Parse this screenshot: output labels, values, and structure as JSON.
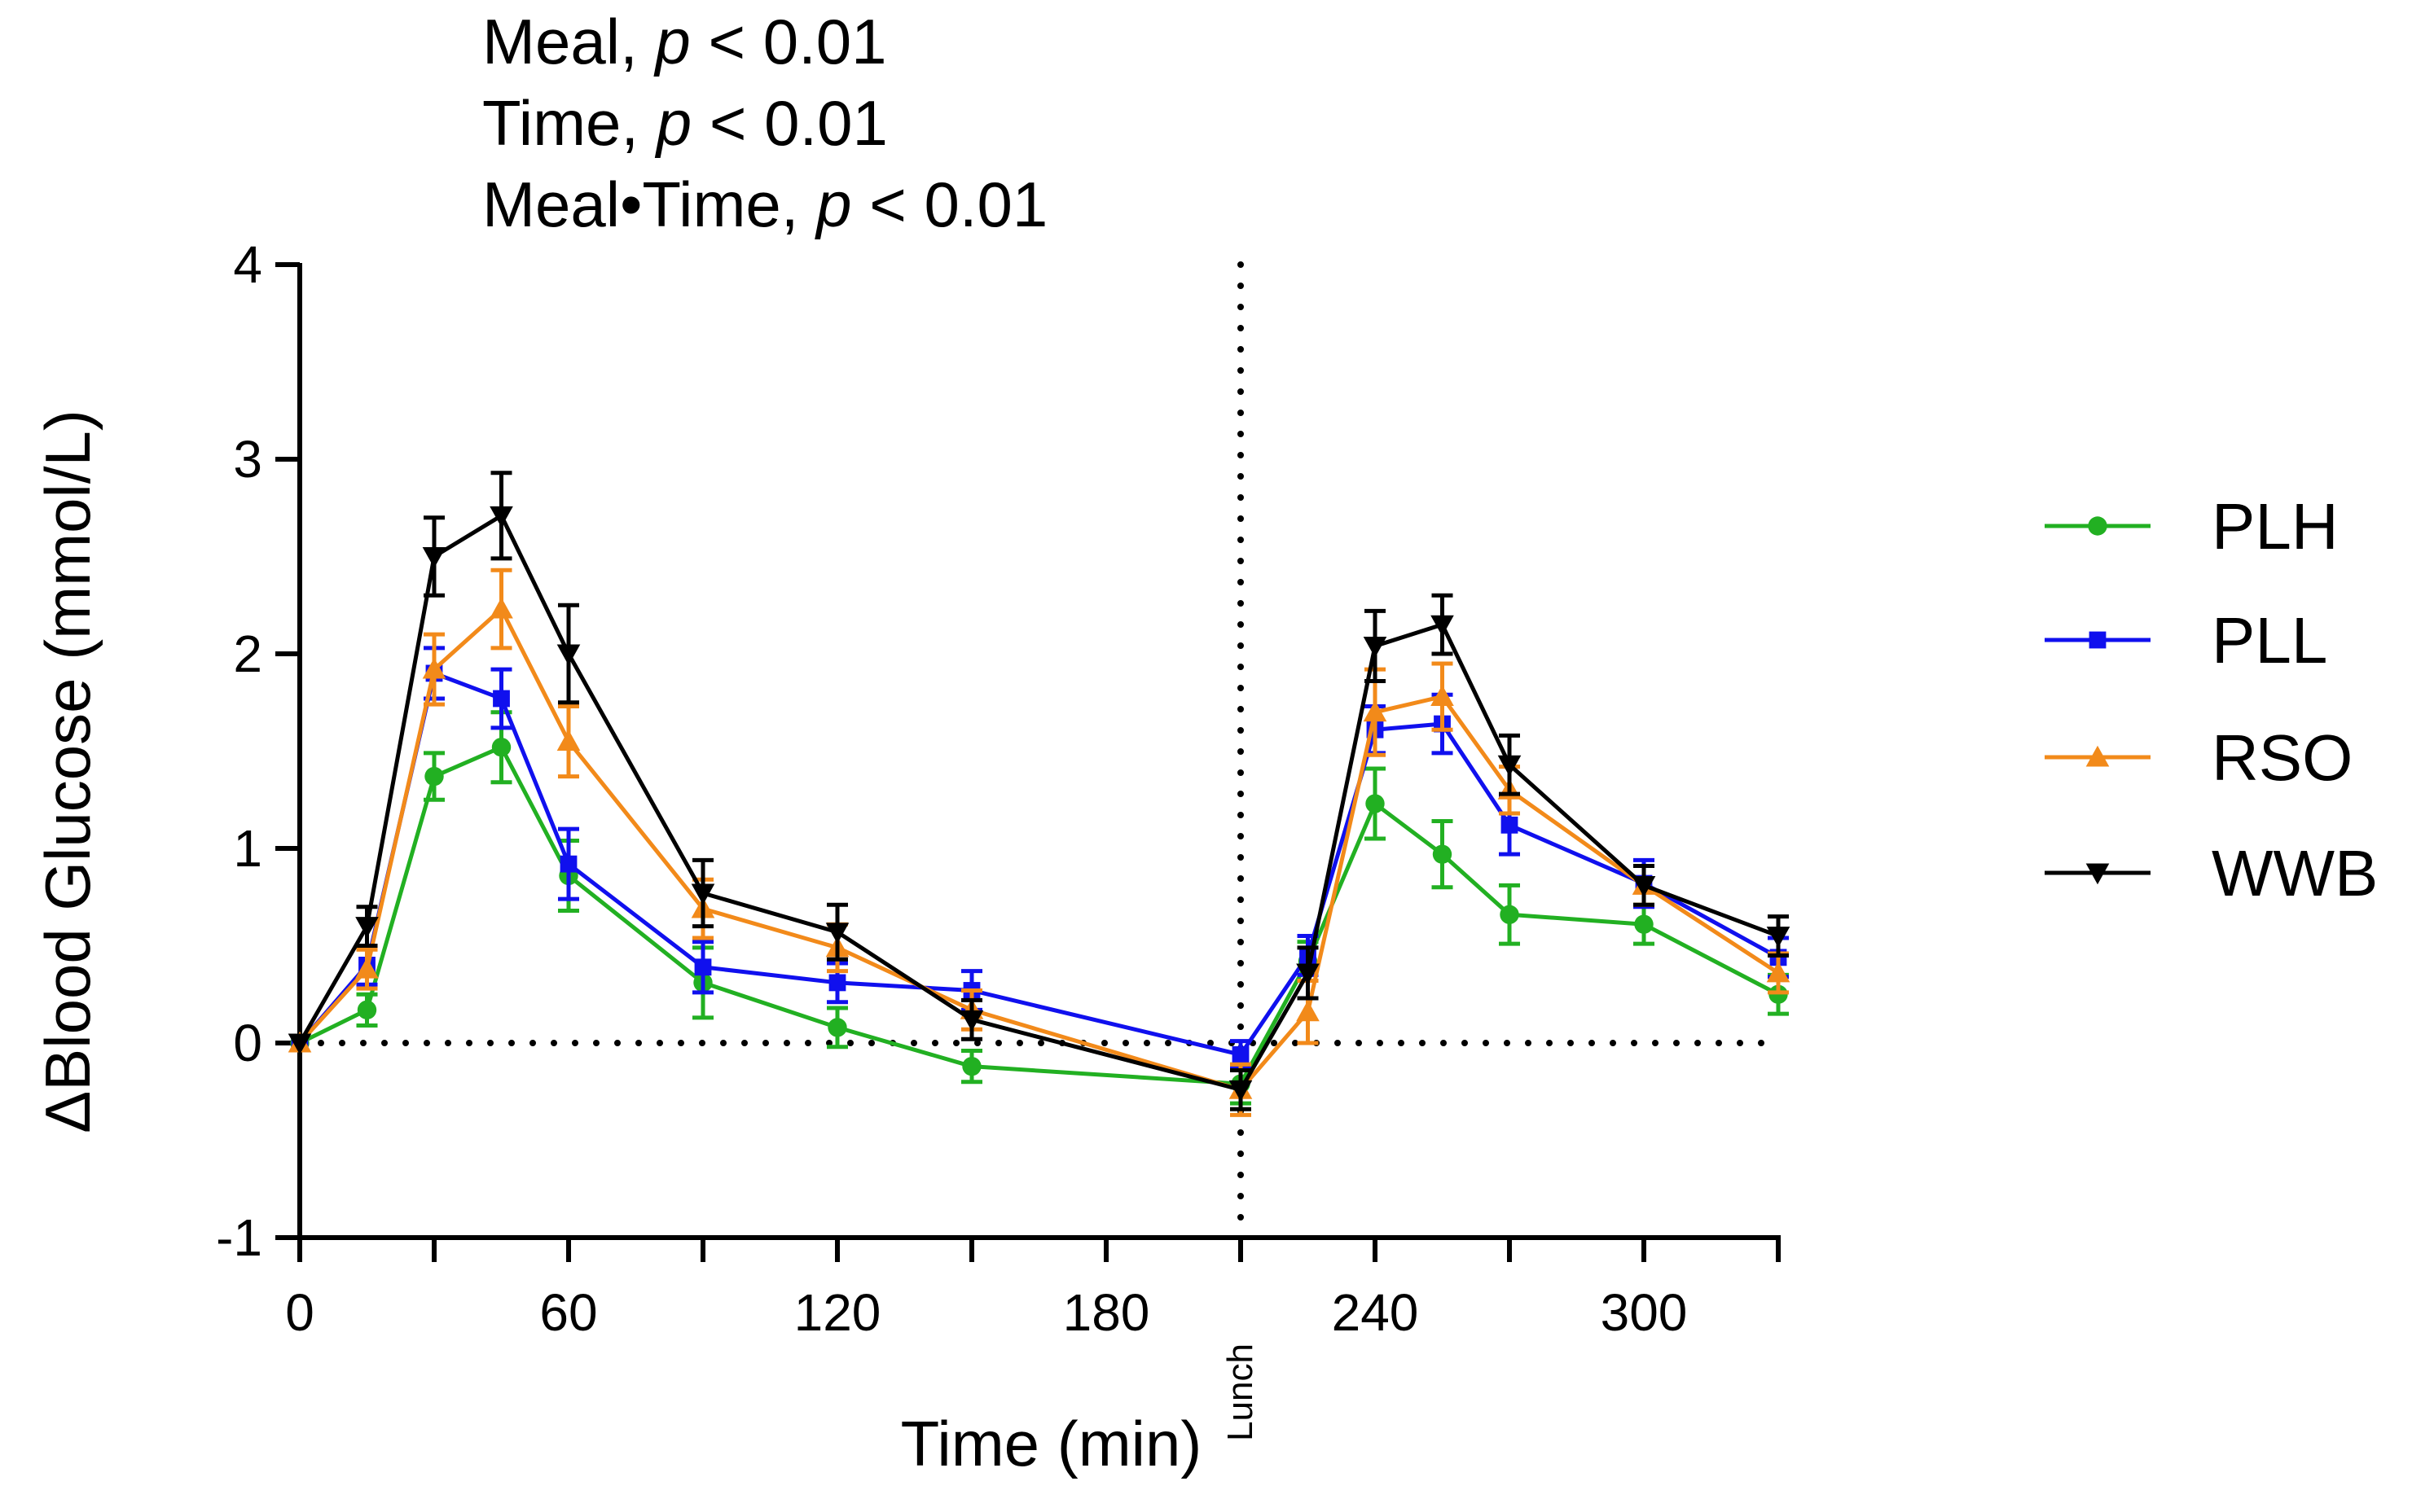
{
  "chart_data": {
    "type": "line",
    "title": "",
    "xlabel": "Time (min)",
    "ylabel": "ΔBlood Glucose (mmol/L)",
    "xlim": [
      0,
      330
    ],
    "ylim": [
      -1,
      4
    ],
    "x_ticks": [
      0,
      60,
      120,
      180,
      240,
      300
    ],
    "y_ticks": [
      -1,
      0,
      1,
      2,
      3,
      4
    ],
    "x_tick_labels": [
      "0",
      "60",
      "120",
      "180",
      "240",
      "300"
    ],
    "y_tick_labels": [
      "-1",
      "0",
      "1",
      "2",
      "3",
      "4"
    ],
    "reference_line_y": 0,
    "event": {
      "x": 210,
      "label": "Lunch"
    },
    "stats": [
      {
        "label": "Meal, ",
        "p_symbol": "p",
        "value": " < 0.01"
      },
      {
        "label": "Time, ",
        "p_symbol": "p",
        "value": " < 0.01"
      },
      {
        "label": "Meal•Time, ",
        "p_symbol": "p",
        "value": " < 0.01"
      }
    ],
    "x": [
      0,
      15,
      30,
      45,
      60,
      90,
      120,
      150,
      210,
      225,
      240,
      255,
      270,
      300,
      330
    ],
    "series": [
      {
        "name": "PLH",
        "color": "#22b022",
        "marker": "circle",
        "values": [
          0,
          0.17,
          1.37,
          1.52,
          0.86,
          0.31,
          0.08,
          -0.12,
          -0.21,
          0.42,
          1.23,
          0.97,
          0.66,
          0.61,
          0.25
        ],
        "errors": [
          0,
          0.08,
          0.12,
          0.18,
          0.18,
          0.18,
          0.1,
          0.08,
          0.1,
          0.1,
          0.18,
          0.17,
          0.15,
          0.1,
          0.1
        ]
      },
      {
        "name": "PLL",
        "color": "#1010ee",
        "marker": "square",
        "values": [
          0,
          0.4,
          1.9,
          1.77,
          0.92,
          0.39,
          0.31,
          0.27,
          -0.06,
          0.45,
          1.61,
          1.64,
          1.12,
          0.82,
          0.44
        ],
        "errors": [
          0,
          0.1,
          0.13,
          0.15,
          0.18,
          0.13,
          0.1,
          0.1,
          0.07,
          0.1,
          0.12,
          0.15,
          0.15,
          0.12,
          0.1
        ]
      },
      {
        "name": "RSO",
        "color": "#f28a1a",
        "marker": "triangle-up",
        "values": [
          0,
          0.38,
          1.92,
          2.23,
          1.55,
          0.69,
          0.49,
          0.17,
          -0.24,
          0.16,
          1.7,
          1.78,
          1.3,
          0.81,
          0.36
        ],
        "errors": [
          0,
          0.1,
          0.18,
          0.2,
          0.18,
          0.15,
          0.12,
          0.1,
          0.13,
          0.16,
          0.22,
          0.17,
          0.12,
          0.1,
          0.1
        ]
      },
      {
        "name": "WWB",
        "color": "#000000",
        "marker": "triangle-down",
        "values": [
          0,
          0.6,
          2.5,
          2.71,
          2.0,
          0.77,
          0.57,
          0.12,
          -0.24,
          0.36,
          2.04,
          2.15,
          1.43,
          0.81,
          0.55
        ],
        "errors": [
          0,
          0.1,
          0.2,
          0.22,
          0.25,
          0.17,
          0.14,
          0.1,
          0.1,
          0.13,
          0.18,
          0.15,
          0.15,
          0.1,
          0.1
        ]
      }
    ],
    "legend": {
      "position": "right"
    }
  }
}
